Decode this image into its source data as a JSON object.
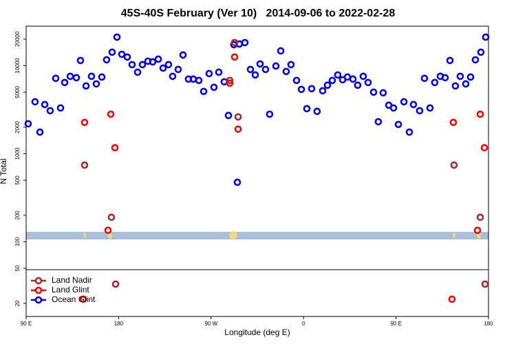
{
  "chart_data": {
    "type": "scatter",
    "title": "45S-40S February (Ver 10)   2014-09-06 to 2022-02-28",
    "x_label": "Longitude (deg E)",
    "y_label": "N Total",
    "log_y": true,
    "legend": "bottom-left",
    "xlim": [
      90,
      540
    ],
    "ylim": [
      14.2,
      28100
    ],
    "xticks": [
      {
        "value": 90,
        "label": "90 E"
      },
      {
        "value": 180,
        "label": "180"
      },
      {
        "value": 270,
        "label": "90 W"
      },
      {
        "value": 360,
        "label": "0"
      },
      {
        "value": 450,
        "label": "90 E"
      },
      {
        "value": 540,
        "label": "180"
      }
    ],
    "yticks": [
      20,
      50,
      100,
      200,
      500,
      1000,
      2000,
      5000,
      10000,
      20000
    ],
    "series": [
      {
        "name": "Land Nadir",
        "color": "#a52a2a",
        "x": [
          146.9,
          173.0,
          177.1,
          292.9,
          296.3,
          288.2,
          506.5,
          532.0,
          536.7
        ],
        "values": [
          743,
          190,
          33.1,
          18280,
          2620,
          6800,
          743,
          190,
          33.1
        ]
      },
      {
        "name": "Land Glint",
        "color": "#ff0000",
        "x": [
          146.9,
          172.4,
          176.4,
          169.7,
          145.6,
          288.2,
          292.9,
          296.3,
          505.8,
          532.0,
          536.0,
          529.3,
          504.5
        ],
        "values": [
          2270,
          2810,
          1170,
          135,
          22.3,
          6320,
          12530,
          1900,
          2270,
          2810,
          1170,
          135,
          22.3
        ]
      },
      {
        "name": "Ocean Glint",
        "color": "#0000ee",
        "x": [
          92.0,
          98.7,
          103.4,
          108.1,
          113.4,
          118.8,
          123.5,
          127.5,
          132.9,
          138.9,
          142.9,
          148.3,
          153.6,
          158.3,
          163.7,
          168.3,
          173.7,
          178.4,
          183.1,
          188.4,
          193.1,
          198.5,
          203.2,
          208.5,
          213.2,
          218.6,
          223.3,
          228.6,
          232.6,
          238.0,
          242.7,
          248.0,
          252.7,
          258.1,
          262.8,
          268.1,
          272.8,
          277.5,
          282.8,
          286.9,
          292.2,
          295.6,
          297.6,
          302.9,
          308.3,
          313.0,
          317.7,
          323.0,
          327.0,
          333.1,
          337.8,
          343.1,
          347.8,
          353.2,
          357.9,
          363.2,
          367.9,
          373.2,
          378.6,
          383.3,
          388.0,
          393.3,
          398.0,
          402.7,
          408.1,
          412.7,
          418.1,
          422.8,
          428.2,
          432.8,
          437.5,
          442.9,
          447.6,
          452.3,
          457.7,
          463.0,
          467.0,
          473.0,
          477.7,
          483.1,
          487.7,
          493.1,
          497.8,
          502.5,
          507.8,
          512.5,
          517.9,
          522.6,
          527.3,
          532.6,
          537.3
        ],
        "values": [
          2190,
          3890,
          1760,
          3620,
          3080,
          7180,
          3310,
          6440,
          7570,
          7300,
          11450,
          5890,
          7570,
          6210,
          7430,
          11660,
          14220,
          21090,
          13460,
          12530,
          10280,
          8430,
          10280,
          11250,
          11040,
          11860,
          9390,
          10280,
          7570,
          9060,
          13220,
          7040,
          7040,
          6800,
          5100,
          8130,
          5680,
          8430,
          6560,
          2720,
          17320,
          474,
          17620,
          18280,
          9060,
          7850,
          10470,
          9060,
          2810,
          9910,
          14720,
          8590,
          10280,
          6800,
          5380,
          3250,
          5480,
          3030,
          5190,
          6000,
          6800,
          7850,
          6920,
          7430,
          7040,
          6000,
          7570,
          6440,
          5000,
          2310,
          4920,
          3560,
          3310,
          2150,
          3890,
          1760,
          3620,
          3080,
          7180,
          3310,
          6440,
          7570,
          7300,
          11450,
          5890,
          7570,
          6210,
          7430,
          11660,
          14220,
          21090
        ]
      }
    ]
  }
}
